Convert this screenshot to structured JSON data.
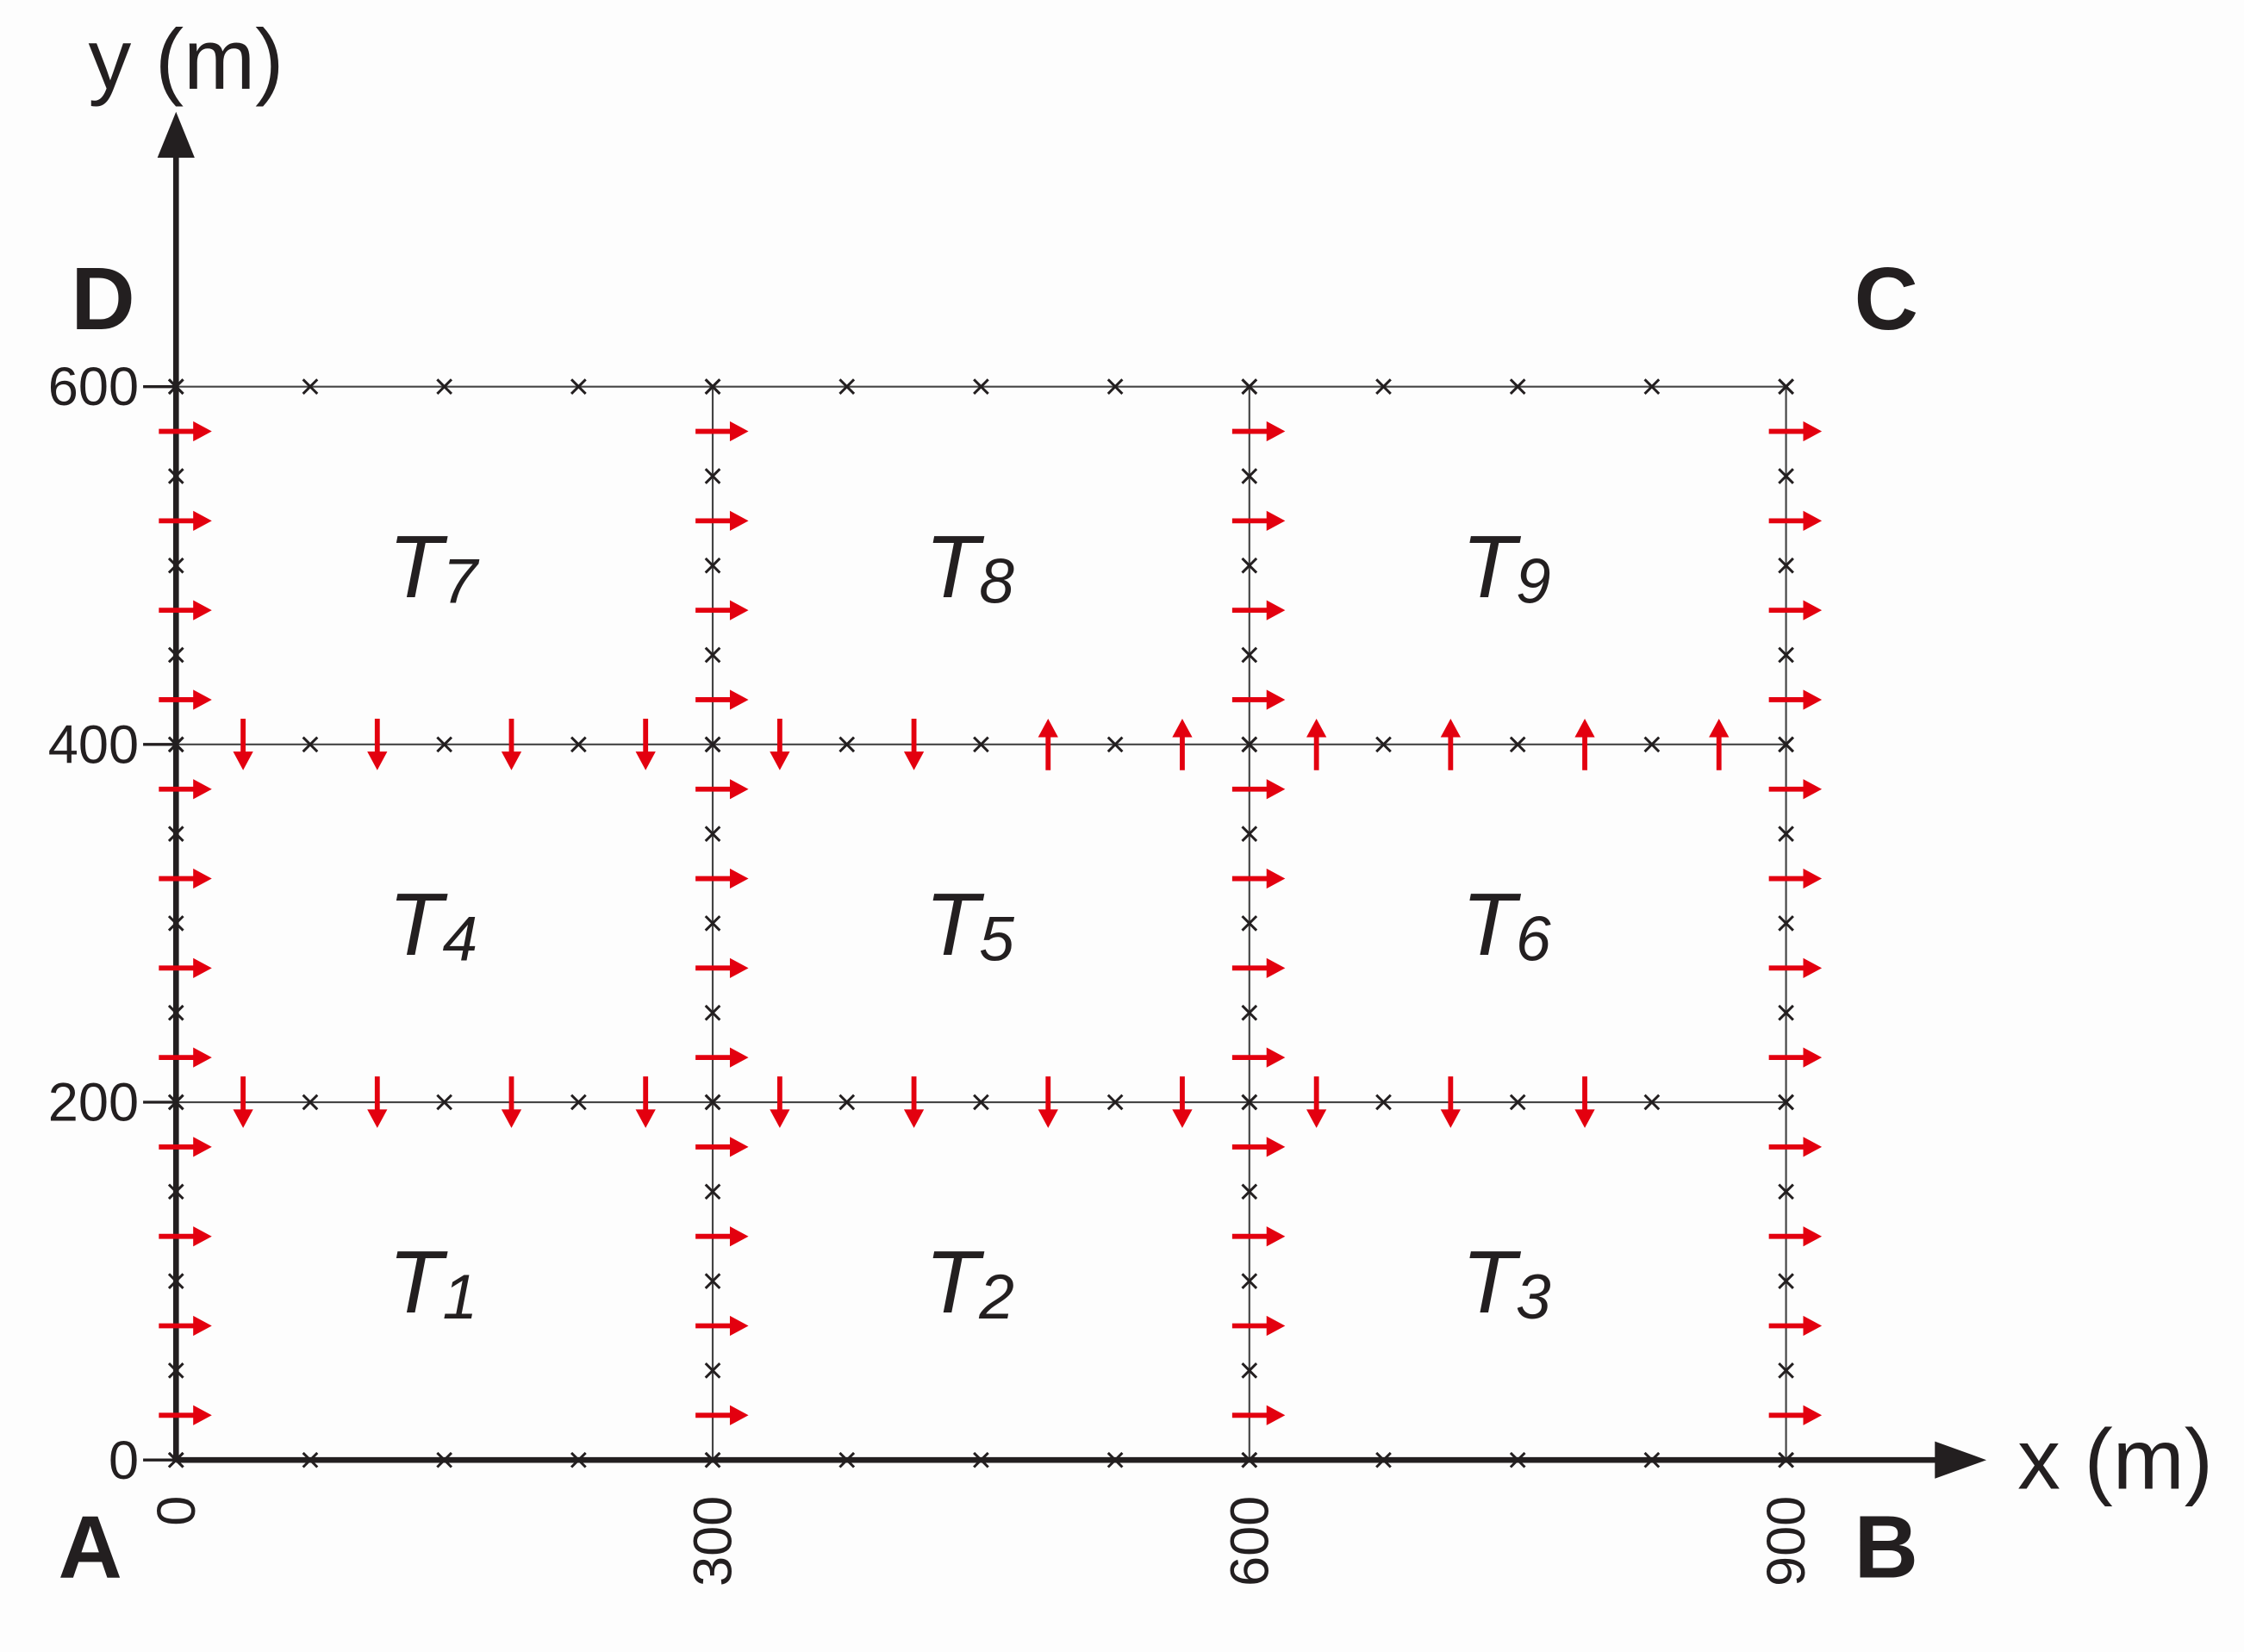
{
  "x_axis": {
    "label": "x (m)",
    "ticks": [
      0,
      300,
      600,
      900
    ]
  },
  "y_axis": {
    "label": "y (m)",
    "ticks": [
      0,
      200,
      400,
      600
    ]
  },
  "corners": {
    "A": "A",
    "B": "B",
    "C": "C",
    "D": "D"
  },
  "tiles": [
    {
      "name": "T",
      "sub": "1"
    },
    {
      "name": "T",
      "sub": "2"
    },
    {
      "name": "T",
      "sub": "3"
    },
    {
      "name": "T",
      "sub": "4"
    },
    {
      "name": "T",
      "sub": "5"
    },
    {
      "name": "T",
      "sub": "6"
    },
    {
      "name": "T",
      "sub": "7"
    },
    {
      "name": "T",
      "sub": "8"
    },
    {
      "name": "T",
      "sub": "9"
    }
  ]
}
